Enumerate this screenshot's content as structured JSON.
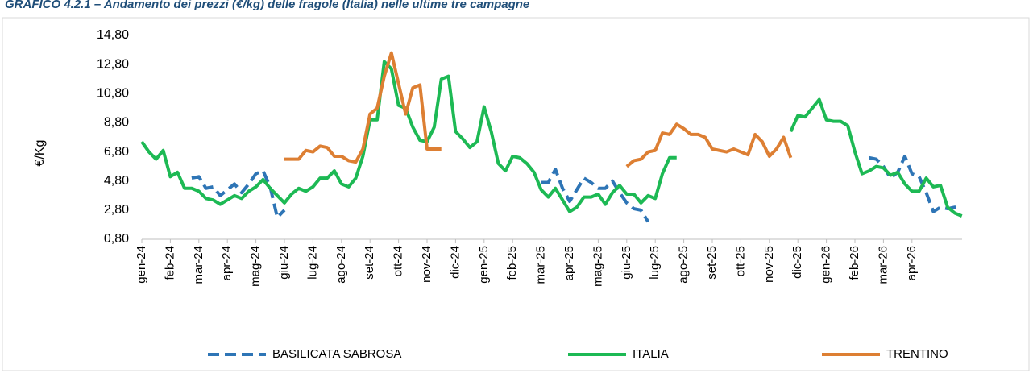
{
  "chart_data": {
    "type": "line",
    "title": "GRAFICO 4.2.1 – Andamento dei prezzi (€/kg) delle fragole (Italia) nelle ultime tre campagne",
    "y_label": "€/Kg",
    "ylim": [
      0.8,
      14.8
    ],
    "yticks": [
      {
        "value": 0.8,
        "label": "0,80"
      },
      {
        "value": 2.8,
        "label": "2,80"
      },
      {
        "value": 4.8,
        "label": "4,80"
      },
      {
        "value": 6.8,
        "label": "6,80"
      },
      {
        "value": 8.8,
        "label": "8,80"
      },
      {
        "value": 10.8,
        "label": "10,80"
      },
      {
        "value": 12.8,
        "label": "12,80"
      },
      {
        "value": 14.8,
        "label": "14,80"
      }
    ],
    "grid": false,
    "legend": "bottom",
    "categories": [
      "gen-24",
      null,
      null,
      null,
      "feb-24",
      null,
      null,
      null,
      "mar-24",
      null,
      null,
      null,
      "apr-24",
      null,
      null,
      null,
      "mag-24",
      null,
      null,
      null,
      "giu-24",
      null,
      null,
      null,
      "lug-24",
      null,
      null,
      null,
      "ago-24",
      null,
      null,
      null,
      "set-24",
      null,
      null,
      null,
      "ott-24",
      null,
      null,
      null,
      "nov-24",
      null,
      null,
      null,
      "dic-24",
      null,
      null,
      null,
      "gen-25",
      null,
      null,
      null,
      "feb-25",
      null,
      null,
      null,
      "mar-25",
      null,
      null,
      null,
      "apr-25",
      null,
      null,
      null,
      "mag-25",
      null,
      null,
      null,
      "giu-25",
      null,
      null,
      null,
      "lug-25",
      null,
      null,
      null,
      "ago-25",
      null,
      null,
      null,
      "set-25",
      null,
      null,
      null,
      "ott-25",
      null,
      null,
      null,
      "nov-25",
      null,
      null,
      null,
      "dic-25",
      null,
      null,
      null,
      "gen-26",
      null,
      null,
      null,
      "feb-26",
      null,
      null,
      null,
      "mar-26",
      null,
      null,
      null,
      "apr-26",
      null,
      null,
      null,
      null,
      null,
      null,
      null
    ],
    "series": [
      {
        "name": "BASILICATA SABROSA",
        "color": "#2e75b6",
        "dashed": true,
        "values": [
          null,
          null,
          null,
          null,
          null,
          null,
          null,
          5.0,
          5.1,
          4.3,
          4.4,
          3.8,
          4.2,
          4.6,
          4.0,
          4.6,
          5.3,
          5.5,
          4.4,
          2.3,
          2.8,
          null,
          null,
          null,
          null,
          null,
          null,
          null,
          null,
          null,
          null,
          null,
          null,
          null,
          null,
          null,
          null,
          null,
          null,
          null,
          null,
          null,
          null,
          null,
          null,
          null,
          null,
          null,
          null,
          null,
          null,
          null,
          null,
          null,
          null,
          null,
          4.7,
          4.7,
          5.6,
          4.3,
          3.4,
          4.2,
          5.0,
          4.7,
          4.3,
          4.3,
          4.8,
          4.0,
          3.3,
          2.9,
          2.8,
          2.0,
          null,
          null,
          null,
          null,
          null,
          null,
          null,
          null,
          null,
          null,
          null,
          null,
          null,
          null,
          null,
          null,
          null,
          null,
          null,
          null,
          null,
          null,
          null,
          null,
          null,
          null,
          null,
          null,
          null,
          null,
          6.4,
          6.3,
          5.8,
          5.0,
          5.4,
          6.5,
          5.3,
          5.1,
          4.0,
          2.7,
          3.0,
          2.9,
          3.0,
          3.0
        ]
      },
      {
        "name": "ITALIA",
        "color": "#1db954",
        "dashed": false,
        "values": [
          7.5,
          6.8,
          6.3,
          6.9,
          5.1,
          5.4,
          4.3,
          4.3,
          4.1,
          3.6,
          3.5,
          3.2,
          3.5,
          3.8,
          3.6,
          4.1,
          4.4,
          4.9,
          4.3,
          3.8,
          3.3,
          3.9,
          4.3,
          4.1,
          4.4,
          5.0,
          5.0,
          5.5,
          4.6,
          4.4,
          5.0,
          6.5,
          9.0,
          9.0,
          13.0,
          12.5,
          10.0,
          9.8,
          8.5,
          7.6,
          7.5,
          8.5,
          11.8,
          12.0,
          8.2,
          7.7,
          7.1,
          7.5,
          9.9,
          8.2,
          6.0,
          5.5,
          6.5,
          6.4,
          6.0,
          5.4,
          4.2,
          3.7,
          4.3,
          3.5,
          2.7,
          3.0,
          3.7,
          3.7,
          3.9,
          3.2,
          4.0,
          4.5,
          3.9,
          3.9,
          3.3,
          3.8,
          3.6,
          5.3,
          6.4,
          6.4,
          null,
          null,
          null,
          null,
          null,
          null,
          null,
          null,
          null,
          null,
          null,
          null,
          null,
          null,
          null,
          8.2,
          9.3,
          9.2,
          9.8,
          10.4,
          9.0,
          8.9,
          8.9,
          8.6,
          6.8,
          5.3,
          5.5,
          5.8,
          5.7,
          5.2,
          5.4,
          4.6,
          4.1,
          4.1,
          5.0,
          4.4,
          4.5,
          3.0,
          2.6,
          2.4
        ]
      },
      {
        "name": "TRENTINO",
        "color": "#dd7f33",
        "dashed": false,
        "values": [
          null,
          null,
          null,
          null,
          null,
          null,
          null,
          null,
          null,
          null,
          null,
          null,
          null,
          null,
          null,
          null,
          null,
          null,
          null,
          null,
          6.3,
          6.3,
          6.3,
          6.9,
          6.8,
          7.2,
          7.1,
          6.5,
          6.5,
          6.2,
          6.1,
          7.0,
          9.4,
          9.8,
          12.0,
          13.6,
          11.5,
          9.4,
          11.2,
          11.4,
          7.0,
          7.0,
          7.0,
          null,
          null,
          null,
          null,
          null,
          null,
          null,
          null,
          null,
          null,
          null,
          null,
          null,
          null,
          null,
          null,
          null,
          null,
          null,
          null,
          null,
          null,
          null,
          null,
          null,
          5.8,
          6.2,
          6.3,
          6.8,
          6.9,
          8.1,
          8.0,
          8.7,
          8.4,
          8.0,
          8.0,
          7.8,
          7.0,
          6.9,
          6.8,
          7.0,
          6.8,
          6.6,
          8.0,
          7.5,
          6.5,
          7.0,
          7.8,
          6.4,
          null,
          null,
          null,
          null,
          null,
          null,
          null,
          null,
          null,
          null,
          null,
          null,
          null,
          null,
          null,
          null,
          null,
          null,
          null,
          null,
          null,
          null,
          null,
          null
        ]
      }
    ]
  }
}
